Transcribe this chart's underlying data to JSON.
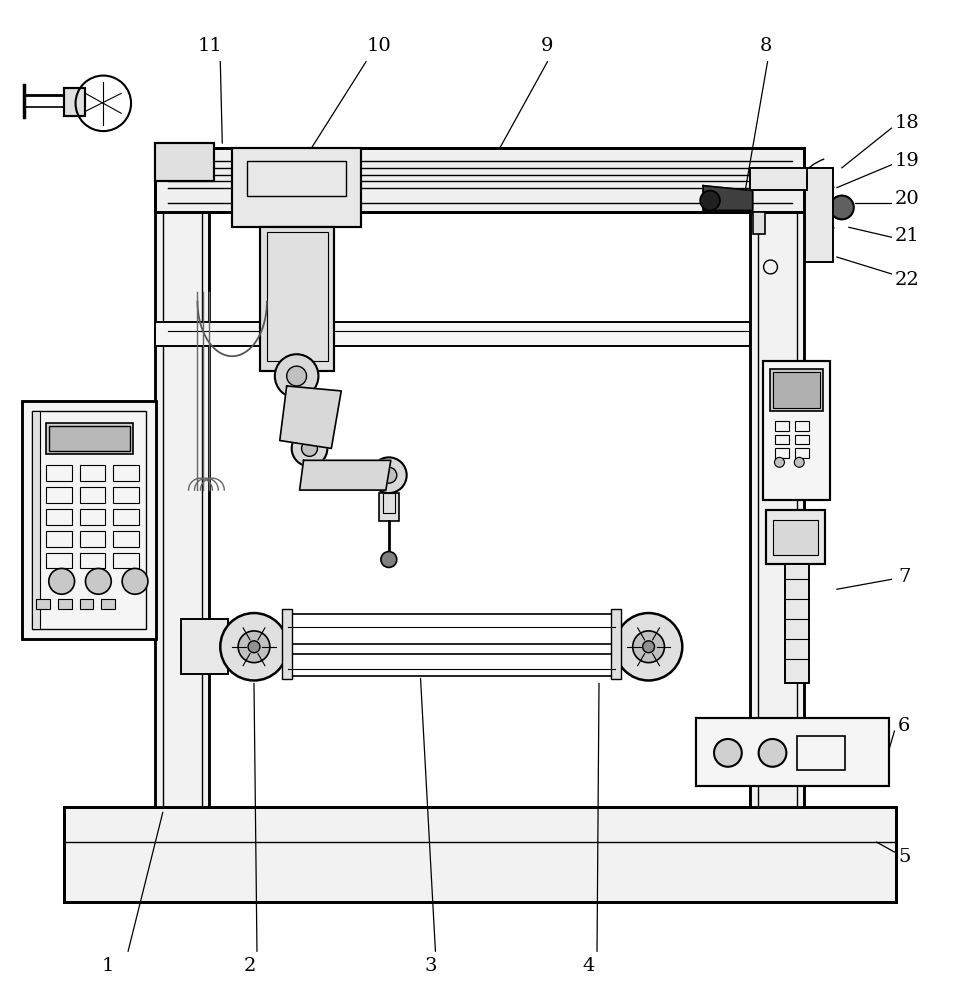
{
  "fig_width": 9.69,
  "fig_height": 10.0,
  "dpi": 100,
  "bg_color": "#ffffff",
  "lc": "#000000",
  "lw": 1.2
}
